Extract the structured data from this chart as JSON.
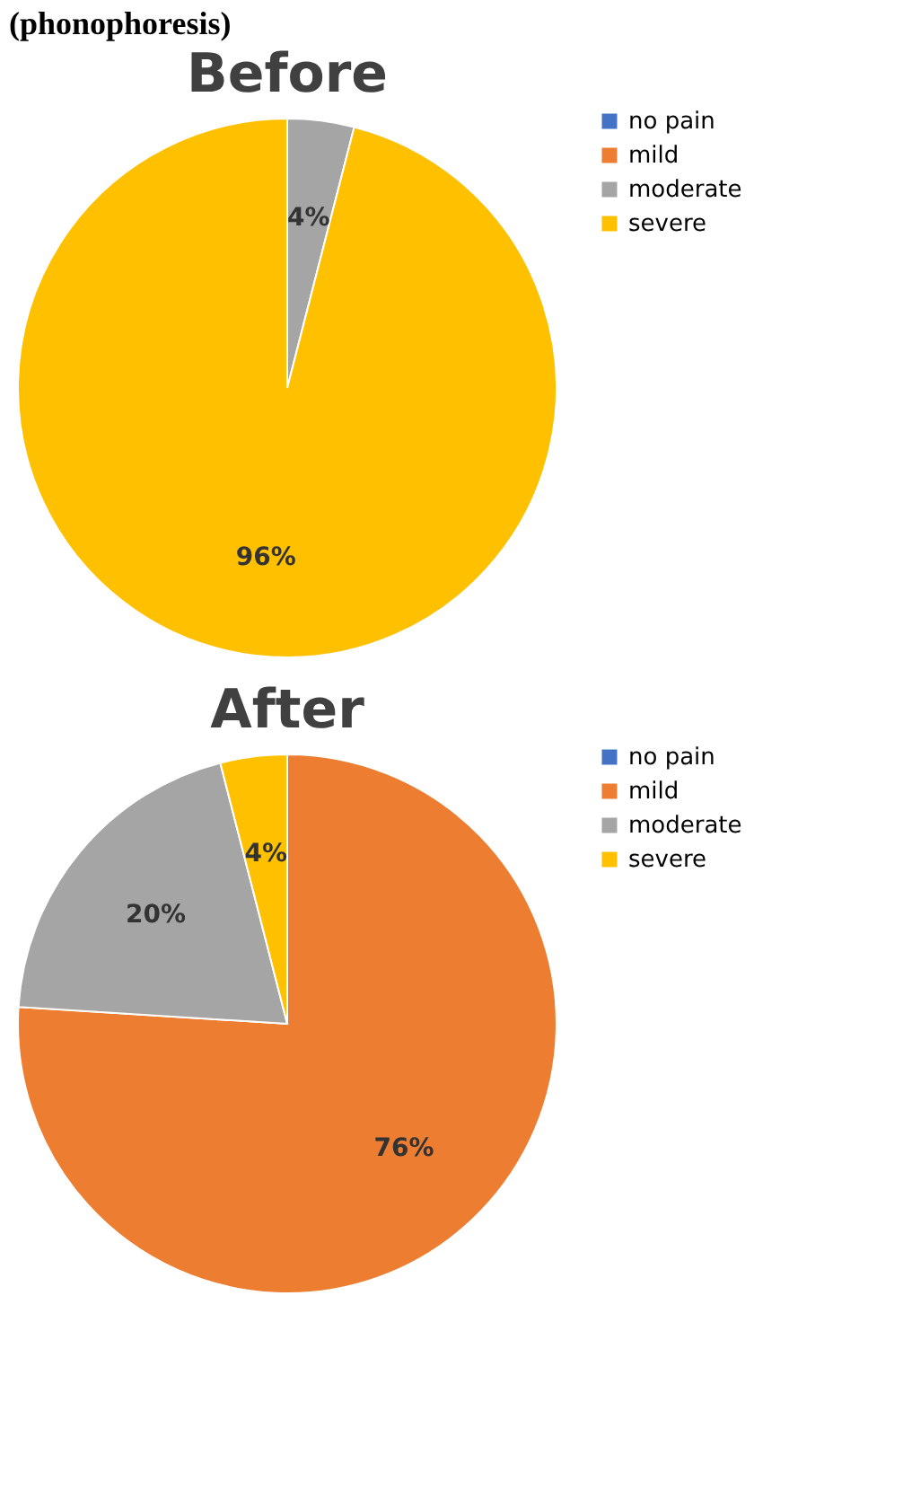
{
  "chart_data": [
    {
      "type": "pie",
      "title": "Before",
      "annotations": [
        "(phonophoresis)"
      ],
      "categories": [
        "no pain",
        "mild",
        "moderate",
        "severe"
      ],
      "values": [
        0,
        0,
        4,
        96
      ],
      "colors": [
        "#4472c4",
        "#ed7d31",
        "#a5a5a5",
        "#ffc000"
      ],
      "value_labels": [
        null,
        null,
        "4%",
        "96%"
      ],
      "legend": "right"
    },
    {
      "type": "pie",
      "title": "After",
      "categories": [
        "no pain",
        "mild",
        "moderate",
        "severe"
      ],
      "values": [
        0,
        76,
        20,
        4
      ],
      "colors": [
        "#4472c4",
        "#ed7d31",
        "#a5a5a5",
        "#ffc000"
      ],
      "value_labels": [
        null,
        "76%",
        "20%",
        "4%"
      ],
      "legend": "right"
    }
  ]
}
